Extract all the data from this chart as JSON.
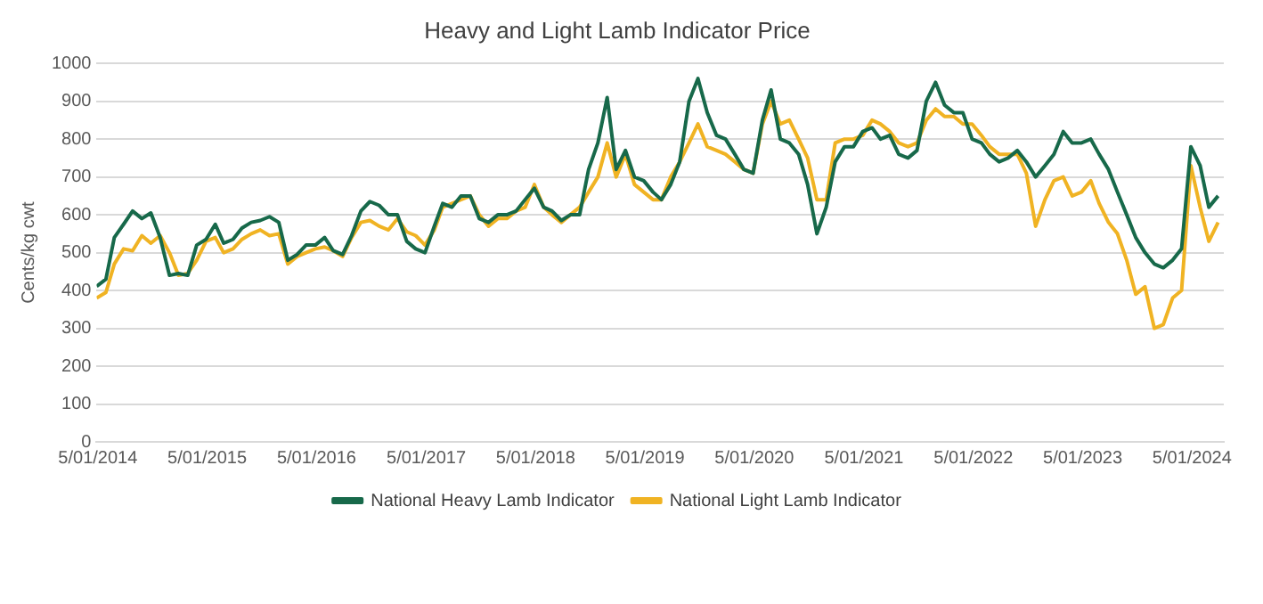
{
  "chart_data": {
    "type": "line",
    "title": "Heavy and Light Lamb Indicator Price",
    "ylabel": "Cents/kg cwt",
    "x": [
      "2014-01",
      "2014-02",
      "2014-03",
      "2014-04",
      "2014-05",
      "2014-06",
      "2014-07",
      "2014-08",
      "2014-09",
      "2014-10",
      "2014-11",
      "2014-12",
      "2015-01",
      "2015-02",
      "2015-03",
      "2015-04",
      "2015-05",
      "2015-06",
      "2015-07",
      "2015-08",
      "2015-09",
      "2015-10",
      "2015-11",
      "2015-12",
      "2016-01",
      "2016-02",
      "2016-03",
      "2016-04",
      "2016-05",
      "2016-06",
      "2016-07",
      "2016-08",
      "2016-09",
      "2016-10",
      "2016-11",
      "2016-12",
      "2017-01",
      "2017-02",
      "2017-03",
      "2017-04",
      "2017-05",
      "2017-06",
      "2017-07",
      "2017-08",
      "2017-09",
      "2017-10",
      "2017-11",
      "2017-12",
      "2018-01",
      "2018-02",
      "2018-03",
      "2018-04",
      "2018-05",
      "2018-06",
      "2018-07",
      "2018-08",
      "2018-09",
      "2018-10",
      "2018-11",
      "2018-12",
      "2019-01",
      "2019-02",
      "2019-03",
      "2019-04",
      "2019-05",
      "2019-06",
      "2019-07",
      "2019-08",
      "2019-09",
      "2019-10",
      "2019-11",
      "2019-12",
      "2020-01",
      "2020-02",
      "2020-03",
      "2020-04",
      "2020-05",
      "2020-06",
      "2020-07",
      "2020-08",
      "2020-09",
      "2020-10",
      "2020-11",
      "2020-12",
      "2021-01",
      "2021-02",
      "2021-03",
      "2021-04",
      "2021-05",
      "2021-06",
      "2021-07",
      "2021-08",
      "2021-09",
      "2021-10",
      "2021-11",
      "2021-12",
      "2022-01",
      "2022-02",
      "2022-03",
      "2022-04",
      "2022-05",
      "2022-06",
      "2022-07",
      "2022-08",
      "2022-09",
      "2022-10",
      "2022-11",
      "2022-12",
      "2023-01",
      "2023-02",
      "2023-03",
      "2023-04",
      "2023-05",
      "2023-06",
      "2023-07",
      "2023-08",
      "2023-09",
      "2023-10",
      "2023-11",
      "2023-12",
      "2024-01",
      "2024-02",
      "2024-03",
      "2024-04"
    ],
    "series": [
      {
        "name": "National Heavy Lamb Indicator",
        "color": "#17694a",
        "values": [
          411,
          430,
          540,
          575,
          610,
          590,
          605,
          540,
          440,
          445,
          440,
          520,
          535,
          575,
          525,
          535,
          565,
          580,
          585,
          595,
          580,
          480,
          495,
          520,
          520,
          540,
          505,
          495,
          545,
          610,
          635,
          625,
          600,
          600,
          530,
          510,
          500,
          570,
          630,
          620,
          650,
          650,
          590,
          580,
          600,
          600,
          610,
          640,
          670,
          620,
          610,
          585,
          600,
          600,
          720,
          790,
          910,
          720,
          770,
          700,
          690,
          660,
          640,
          680,
          740,
          900,
          960,
          870,
          810,
          800,
          760,
          720,
          710,
          850,
          930,
          800,
          790,
          760,
          680,
          550,
          620,
          740,
          780,
          780,
          820,
          830,
          800,
          810,
          760,
          750,
          770,
          900,
          950,
          890,
          870,
          870,
          800,
          790,
          760,
          740,
          750,
          770,
          740,
          700,
          730,
          760,
          820,
          790,
          790,
          800,
          760,
          720,
          660,
          600,
          540,
          500,
          470,
          460,
          480,
          510,
          780,
          730,
          620,
          650
        ]
      },
      {
        "name": "National Light Lamb Indicator",
        "color": "#f0b323",
        "values": [
          380,
          395,
          470,
          510,
          505,
          545,
          525,
          545,
          500,
          440,
          445,
          480,
          530,
          540,
          500,
          510,
          535,
          550,
          560,
          545,
          550,
          470,
          490,
          500,
          510,
          515,
          505,
          490,
          540,
          580,
          585,
          570,
          560,
          590,
          555,
          545,
          520,
          560,
          620,
          630,
          640,
          650,
          600,
          570,
          590,
          590,
          610,
          620,
          680,
          620,
          600,
          580,
          600,
          620,
          660,
          700,
          790,
          700,
          760,
          680,
          660,
          640,
          640,
          700,
          740,
          790,
          840,
          780,
          770,
          760,
          740,
          720,
          710,
          840,
          900,
          840,
          850,
          800,
          750,
          640,
          640,
          790,
          800,
          800,
          810,
          850,
          840,
          820,
          790,
          780,
          790,
          850,
          880,
          860,
          860,
          840,
          840,
          810,
          780,
          760,
          760,
          760,
          710,
          570,
          640,
          690,
          700,
          650,
          660,
          690,
          630,
          580,
          550,
          480,
          390,
          410,
          300,
          310,
          380,
          400,
          730,
          620,
          530,
          580
        ]
      }
    ],
    "xlim": [
      "2014-01-01",
      "2024-04-20"
    ],
    "xticks": [
      {
        "value": "2014-01-05",
        "label": "5/01/2014"
      },
      {
        "value": "2015-01-05",
        "label": "5/01/2015"
      },
      {
        "value": "2016-01-05",
        "label": "5/01/2016"
      },
      {
        "value": "2017-01-05",
        "label": "5/01/2017"
      },
      {
        "value": "2018-01-05",
        "label": "5/01/2018"
      },
      {
        "value": "2019-01-05",
        "label": "5/01/2019"
      },
      {
        "value": "2020-01-05",
        "label": "5/01/2020"
      },
      {
        "value": "2021-01-05",
        "label": "5/01/2021"
      },
      {
        "value": "2022-01-05",
        "label": "5/01/2022"
      },
      {
        "value": "2023-01-05",
        "label": "5/01/2023"
      },
      {
        "value": "2024-01-05",
        "label": "5/01/2024"
      }
    ],
    "ylim": [
      0,
      1000
    ],
    "yticks": [
      0,
      100,
      200,
      300,
      400,
      500,
      600,
      700,
      800,
      900,
      1000
    ],
    "grid": "y",
    "legend": "bottom",
    "marker": "none",
    "line_style": "solid"
  }
}
